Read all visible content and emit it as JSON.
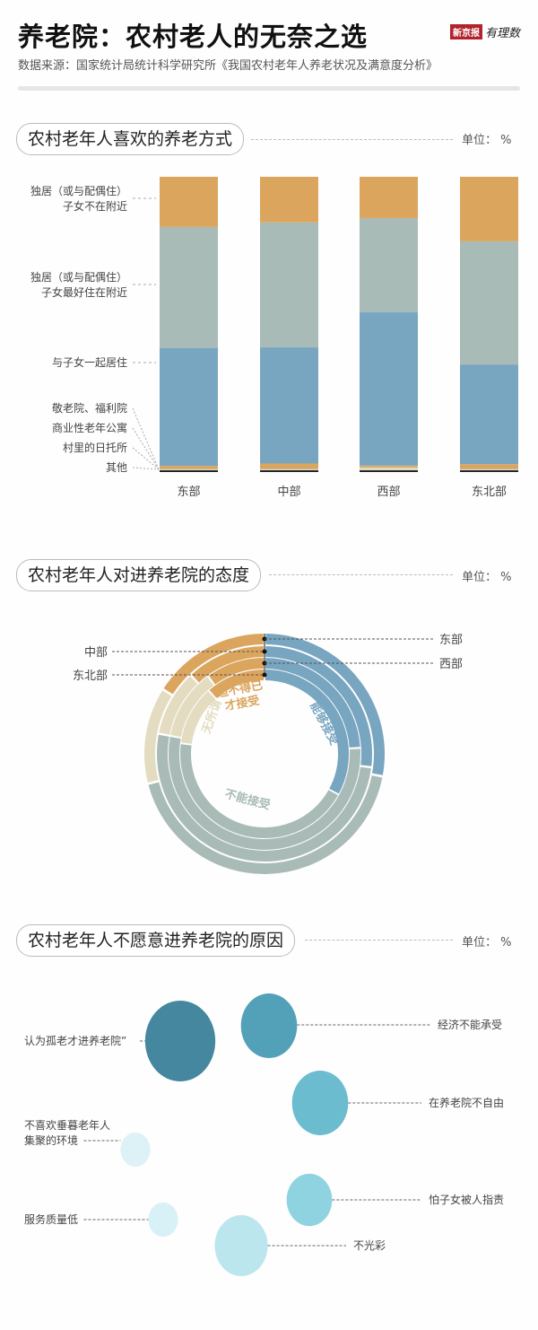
{
  "header": {
    "title": "养老院：农村老人的无奈之选",
    "subtitle": "数据来源：国家统计局统计科学研究所《我国农村老年人养老状况及满意度分析》",
    "logo_text": "新京报",
    "logo_sub": "有理数"
  },
  "colors": {
    "orange": "#dba55e",
    "gray": "#a9bbb6",
    "blue": "#78a5c0",
    "beige": "#e3dcc0",
    "black": "#222222"
  },
  "chart_data": [
    {
      "type": "bar",
      "stacked": true,
      "title": "农村老年人喜欢的养老方式",
      "unit": "单位： %",
      "categories": [
        "东部",
        "中部",
        "西部",
        "东北部"
      ],
      "series": [
        {
          "name": "其他",
          "color": "#222222",
          "values": [
            0.6,
            0.6,
            0.6,
            0.6
          ]
        },
        {
          "name": "村里的日托所",
          "color": "#e3dcc0",
          "values": [
            0.3,
            0.3,
            0.8,
            0.3
          ]
        },
        {
          "name": "商业性老年公寓",
          "color": "#a9bbb6",
          "values": [
            0.2,
            0.2,
            0.2,
            0.2
          ]
        },
        {
          "name": "敬老院、福利院",
          "color": "#dba55e",
          "values": [
            1.0,
            1.8,
            0.6,
            1.6
          ]
        },
        {
          "name": "与子女一起居住",
          "color": "#78a5c0",
          "values": [
            40,
            39.5,
            52,
            34
          ]
        },
        {
          "name": "独居（或与配偶住）子女最好住在附近",
          "label_lines": [
            "独居（或与配偶住）",
            "子女最好住在附近"
          ],
          "color": "#a9bbb6",
          "values": [
            41,
            42.5,
            32,
            42
          ]
        },
        {
          "name": "独居（或与配偶住）子女不在附近",
          "label_lines": [
            "独居（或与配偶住）",
            "子女不在附近"
          ],
          "color": "#dba55e",
          "values": [
            17,
            15.5,
            14,
            22
          ]
        }
      ]
    },
    {
      "type": "pie",
      "subtype": "concentric-rings",
      "title": "农村老年人对进养老院的态度",
      "unit": "单位： %",
      "categories": [
        "能够接受",
        "不能接受",
        "无所谓",
        "迫不得已才接受"
      ],
      "category_labels": {
        "能够接受": [
          "能够接受"
        ],
        "不能接受": [
          "不能接受"
        ],
        "无所谓": [
          "无所谓"
        ],
        "迫不得已才接受": [
          "迫不得已",
          "才接受"
        ]
      },
      "category_colors": [
        "#78a5c0",
        "#a9bbb6",
        "#e3dcc0",
        "#dba55e"
      ],
      "series": [
        {
          "name": "东部",
          "values": [
            28,
            43,
            13,
            16
          ]
        },
        {
          "name": "中部",
          "values": [
            27,
            51,
            10,
            12
          ]
        },
        {
          "name": "西部",
          "values": [
            24,
            54,
            12,
            10
          ]
        },
        {
          "name": "东北部",
          "values": [
            33,
            44,
            11.5,
            11.5
          ]
        }
      ]
    },
    {
      "type": "scatter",
      "subtype": "bubble",
      "title": "农村老年人不愿意进养老院的原因",
      "unit": "单位： %",
      "bubbles": [
        {
          "label": [
            "认为孤老才进养老院”"
          ],
          "relative_size": 100,
          "color": "#44879f"
        },
        {
          "label": [
            "经济不能承受"
          ],
          "relative_size": 64,
          "color": "#52a1b8"
        },
        {
          "label": [
            "在养老院不自由"
          ],
          "relative_size": 64,
          "color": "#6cbcd0"
        },
        {
          "label": [
            "不喜欢垂暮老年人",
            "集聚的环境"
          ],
          "relative_size": 18,
          "color": "#dcf2f6"
        },
        {
          "label": [
            "怕子女被人指责"
          ],
          "relative_size": 42,
          "color": "#8fd3e1"
        },
        {
          "label": [
            "服务质量低"
          ],
          "relative_size": 18,
          "color": "#d8f1f6"
        },
        {
          "label": [
            "不光彩"
          ],
          "relative_size": 57,
          "color": "#bce6ee"
        }
      ]
    }
  ]
}
